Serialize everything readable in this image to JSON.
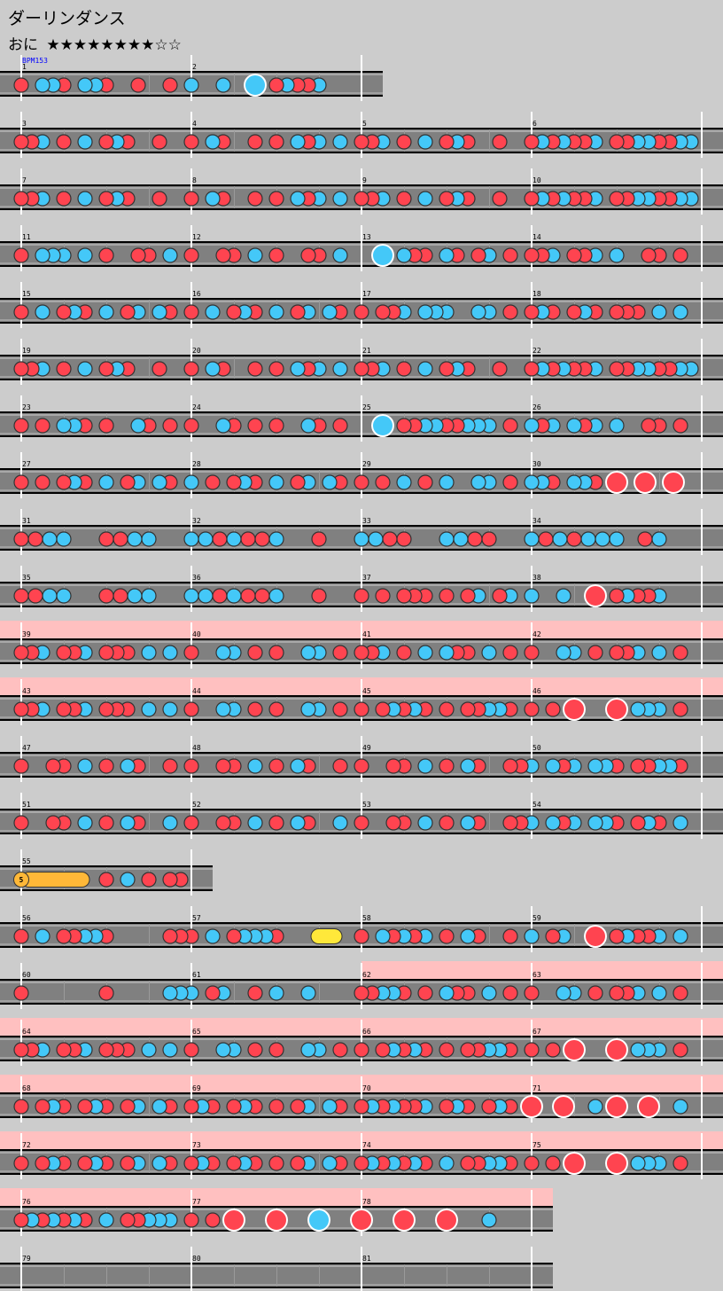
{
  "song": {
    "title": "ダーリンダンス",
    "difficulty": "おに",
    "stars": "★★★★★★★★☆☆",
    "stars_filled": 8,
    "stars_total": 10,
    "bpm_label": "BPM153"
  },
  "colors": {
    "background": "#cccccc",
    "lane": "#808080",
    "don": "#ff4450",
    "ka": "#44c8f8",
    "roll": "#ffb838",
    "balloon": "#ffe83a",
    "gogo": "#ffc0c0",
    "bpm_text": "#0000ff"
  },
  "legend": {
    "1": "don",
    "2": "ka",
    "3": "big-don",
    "4": "big-ka",
    "5": "drumroll",
    "7": "balloon",
    "8": "end"
  },
  "roll_label": "5",
  "measures": [
    {
      "num": "1",
      "notes": "1022102210010010"
    },
    {
      "num": "2",
      "notes": "2002004012112000"
    },
    {
      "num": "3",
      "notes": "1120102012100100"
    },
    {
      "num": "4",
      "notes": "1021001010212020"
    },
    {
      "num": "5",
      "notes": "1120102012100100"
    },
    {
      "num": "6",
      "notes": "1212112011221122"
    },
    {
      "num": "7",
      "notes": "1120102012100100"
    },
    {
      "num": "8",
      "notes": "1021001010212020"
    },
    {
      "num": "9",
      "notes": "1120102012100100"
    },
    {
      "num": "10",
      "notes": "1212112011221122"
    },
    {
      "num": "11",
      "notes": "1022202010011020"
    },
    {
      "num": "12",
      "notes": "1001102010011020"
    },
    {
      "num": "13",
      "notes": "0040211021012010"
    },
    {
      "num": "14",
      "notes": "1120112020011010"
    },
    {
      "num": "15",
      "notes": "1020121020120210"
    },
    {
      "num": "16",
      "notes": "1020121020120210"
    },
    {
      "num": "17",
      "notes": "1011202220022010"
    },
    {
      "num": "18",
      "notes": "1210121011102020"
    },
    {
      "num": "19",
      "notes": "1120102012100100"
    },
    {
      "num": "20",
      "notes": "1021001010212020"
    },
    {
      "num": "21",
      "notes": "1120102012100100"
    },
    {
      "num": "22",
      "notes": "1212112011221122"
    },
    {
      "num": "23",
      "notes": "1010221010021010"
    },
    {
      "num": "24",
      "notes": "1002101010021010"
    },
    {
      "num": "25",
      "notes": "0040112211222010"
    },
    {
      "num": "26",
      "notes": "2120212020011010"
    },
    {
      "num": "27",
      "notes": "1010121020120210"
    },
    {
      "num": "28",
      "notes": "2010121020120210"
    },
    {
      "num": "29",
      "notes": "1010201020022010"
    },
    {
      "num": "30",
      "notes": "200200100000200200100000300000003000000030000000"
    },
    {
      "num": "31",
      "notes": "112200112200"
    },
    {
      "num": "32",
      "notes": "221211200100"
    },
    {
      "num": "33",
      "notes": "221100221100"
    },
    {
      "num": "34",
      "notes": "212122201200"
    },
    {
      "num": "35",
      "notes": "112200112200"
    },
    {
      "num": "36",
      "notes": "221211200100"
    },
    {
      "num": "37",
      "notes": "1010111010120120"
    },
    {
      "num": "38",
      "notes": "2002003012112000"
    },
    {
      "num": "39",
      "notes": "1120112011102020",
      "gogo": true
    },
    {
      "num": "40",
      "notes": "1002201010022010",
      "gogo": true
    },
    {
      "num": "41",
      "notes": "1120102021102010",
      "gogo": true
    },
    {
      "num": "42",
      "notes": "1002201011202010",
      "gogo": true
    },
    {
      "num": "43",
      "notes": "1120112011102020",
      "gogo": true
    },
    {
      "num": "44",
      "notes": "1002201010022010",
      "gogo": true
    },
    {
      "num": "45",
      "notes": "1012121010112210",
      "gogo": true
    },
    {
      "num": "46",
      "notes": "1010300030222010",
      "gogo": true
    },
    {
      "num": "47",
      "notes": "1001102010210010"
    },
    {
      "num": "48",
      "notes": "1001102010210010"
    },
    {
      "num": "49",
      "notes": "1001102010210011"
    },
    {
      "num": "50",
      "notes": "2021202210112210"
    },
    {
      "num": "51",
      "notes": "1001102010210020"
    },
    {
      "num": "52",
      "notes": "1001102010210020"
    },
    {
      "num": "53",
      "notes": "1001102010210011"
    },
    {
      "num": "54",
      "notes": "2021202210121020"
    },
    {
      "num": "55",
      "notes": "5000008010201011"
    },
    {
      "num": "56",
      "notes": "1020112210000011"
    },
    {
      "num": "57",
      "notes": "1020122210007080"
    },
    {
      "num": "58",
      "notes": "1021212010210010"
    },
    {
      "num": "59",
      "notes": "2012003012112020"
    },
    {
      "num": "60",
      "notes": "1000000010000022"
    },
    {
      "num": "61",
      "notes": "2012001020020000"
    },
    {
      "num": "62",
      "notes": "1122101021102010",
      "gogo": true
    },
    {
      "num": "63",
      "notes": "1002201011202010",
      "gogo": true
    },
    {
      "num": "64",
      "notes": "1120112011102020",
      "gogo": true
    },
    {
      "num": "65",
      "notes": "1002201010022010",
      "gogo": true
    },
    {
      "num": "66",
      "notes": "1012121010112210",
      "gogo": true
    },
    {
      "num": "67",
      "notes": "1010300030222010",
      "gogo": true
    },
    {
      "num": "68",
      "notes": "1012101210120210",
      "gogo": true
    },
    {
      "num": "69",
      "notes": "1210121010120210",
      "gogo": true
    },
    {
      "num": "70",
      "notes": "1212112012101210",
      "gogo": true
    },
    {
      "num": "71",
      "notes": "3003002030030020",
      "gogo": true
    },
    {
      "num": "72",
      "notes": "1012101210120210",
      "gogo": true
    },
    {
      "num": "73",
      "notes": "1210121010120210",
      "gogo": true
    },
    {
      "num": "74",
      "notes": "1212121020112210",
      "gogo": true
    },
    {
      "num": "75",
      "notes": "1010300030222010",
      "gogo": true
    },
    {
      "num": "76",
      "notes": "1212121020112220",
      "gogo": true
    },
    {
      "num": "77",
      "notes": "1010300030004000",
      "gogo": true
    },
    {
      "num": "78",
      "notes": "3000300030002000",
      "gogo": true
    },
    {
      "num": "79",
      "notes": "0"
    },
    {
      "num": "80",
      "notes": "0"
    },
    {
      "num": "81",
      "notes": "0"
    }
  ]
}
